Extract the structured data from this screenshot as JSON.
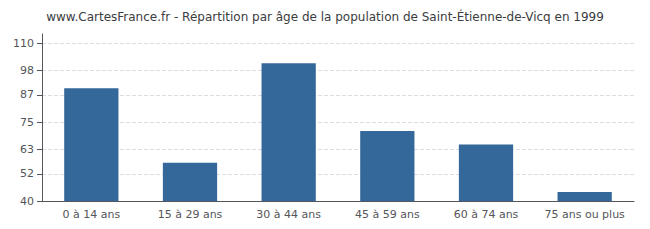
{
  "chart_data": {
    "type": "bar",
    "title": "www.CartesFrance.fr - Répartition par âge de la population de Saint-Étienne-de-Vicq en 1999",
    "categories": [
      "0 à 14 ans",
      "15 à 29 ans",
      "30 à 44 ans",
      "45 à 59 ans",
      "60 à 74 ans",
      "75 ans ou plus"
    ],
    "values": [
      90,
      57,
      101,
      71,
      65,
      44
    ],
    "color": "#34679a",
    "ylim": [
      40,
      114
    ],
    "yticks": [
      40,
      52,
      63,
      75,
      87,
      98,
      110
    ],
    "grid": true
  }
}
